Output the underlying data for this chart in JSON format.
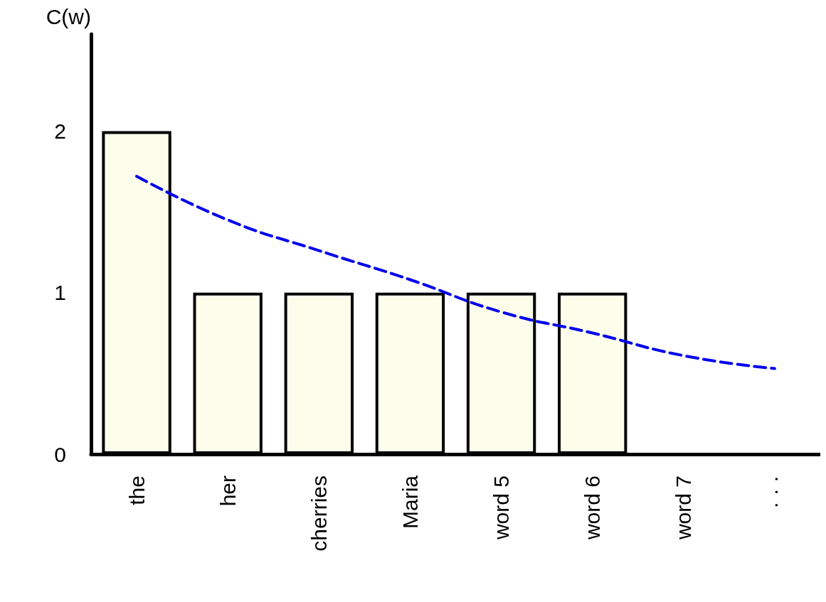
{
  "chart_data": {
    "type": "bar",
    "ylabel": "C(w)",
    "categories": [
      "the",
      "her",
      "cherries",
      "Maria",
      "word 5",
      "word 6",
      "word 7",
      "· · ·"
    ],
    "series": [
      {
        "color": "#fdfdec",
        "values": [
          2,
          1,
          1,
          1,
          1,
          1,
          null,
          null
        ]
      },
      {
        "type": "line",
        "color": "#0000ee",
        "values": [
          1.72,
          1.45,
          1.26,
          1.08,
          0.88,
          0.75,
          0.61,
          0.53
        ],
        "line_style": "dashed",
        "marker": "none"
      }
    ],
    "ylim": [
      0,
      2.6
    ],
    "yticks": [
      0,
      1,
      2
    ],
    "grid": false
  }
}
